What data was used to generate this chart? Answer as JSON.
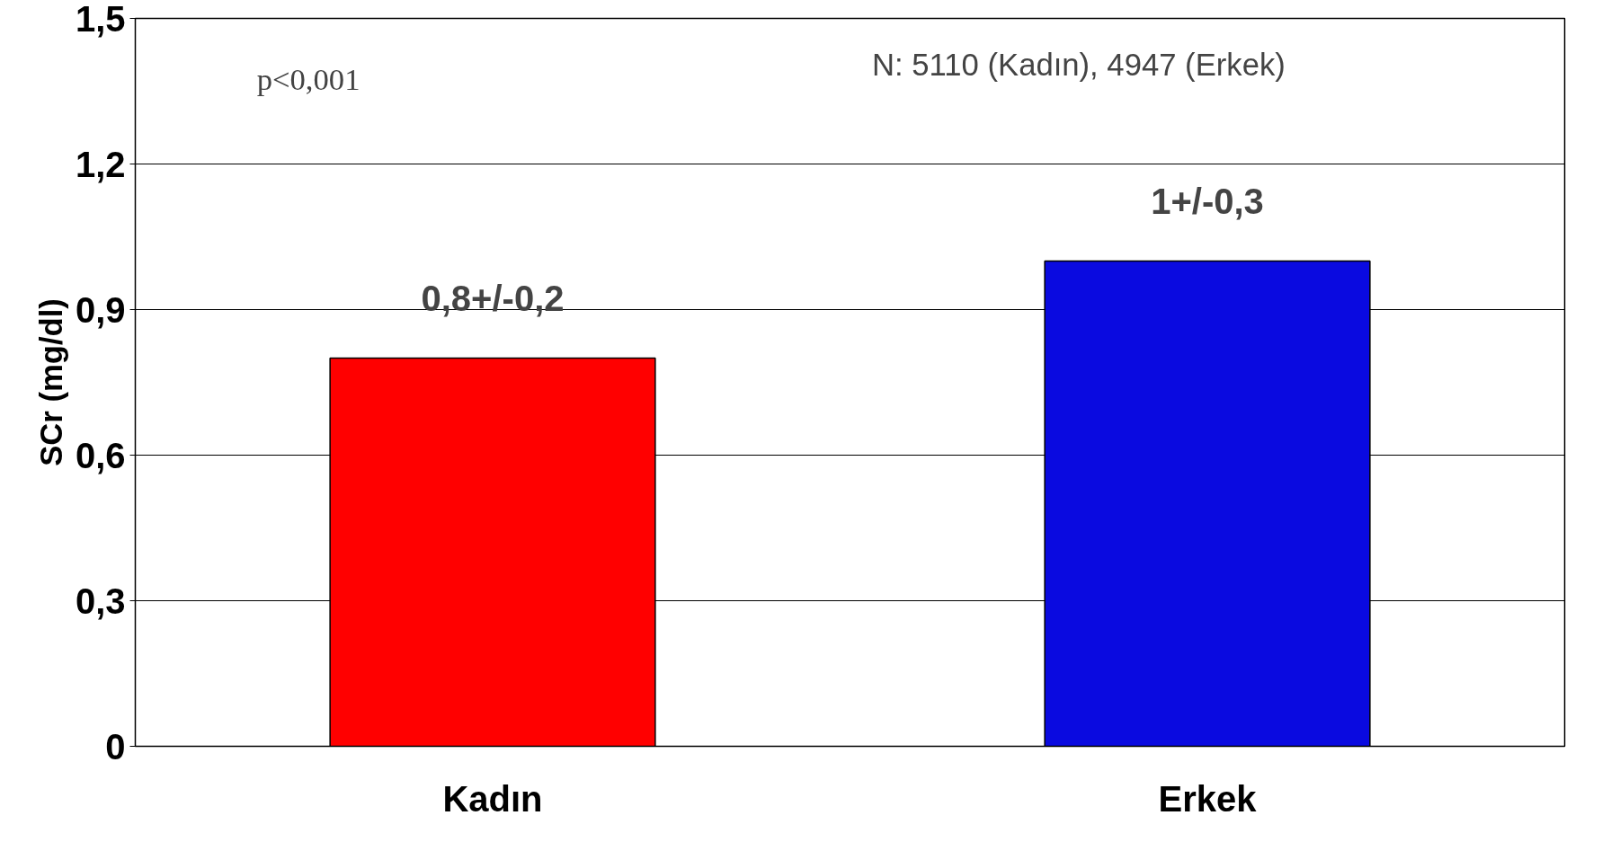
{
  "chart_data": {
    "type": "bar",
    "ylabel": "SCr (mg/dl)",
    "categories": [
      "Kadın",
      "Erkek"
    ],
    "values": [
      0.8,
      1
    ],
    "colors": [
      "#ff0000",
      "#0a0ae0"
    ],
    "value_labels": [
      "0,8+/-0,2",
      "1+/-0,3"
    ],
    "annotations": [
      "p<0,001",
      "N: 5110 (Kadın), 4947 (Erkek)"
    ],
    "ylim": [
      0,
      1.5
    ],
    "yticks": [
      {
        "value": 0,
        "label": "0"
      },
      {
        "value": 0.3,
        "label": "0,3"
      },
      {
        "value": 0.6,
        "label": "0,6"
      },
      {
        "value": 0.9,
        "label": "0,9"
      },
      {
        "value": 1.2,
        "label": "1,2"
      },
      {
        "value": 1.5,
        "label": "1,5"
      }
    ],
    "grid": "y"
  }
}
